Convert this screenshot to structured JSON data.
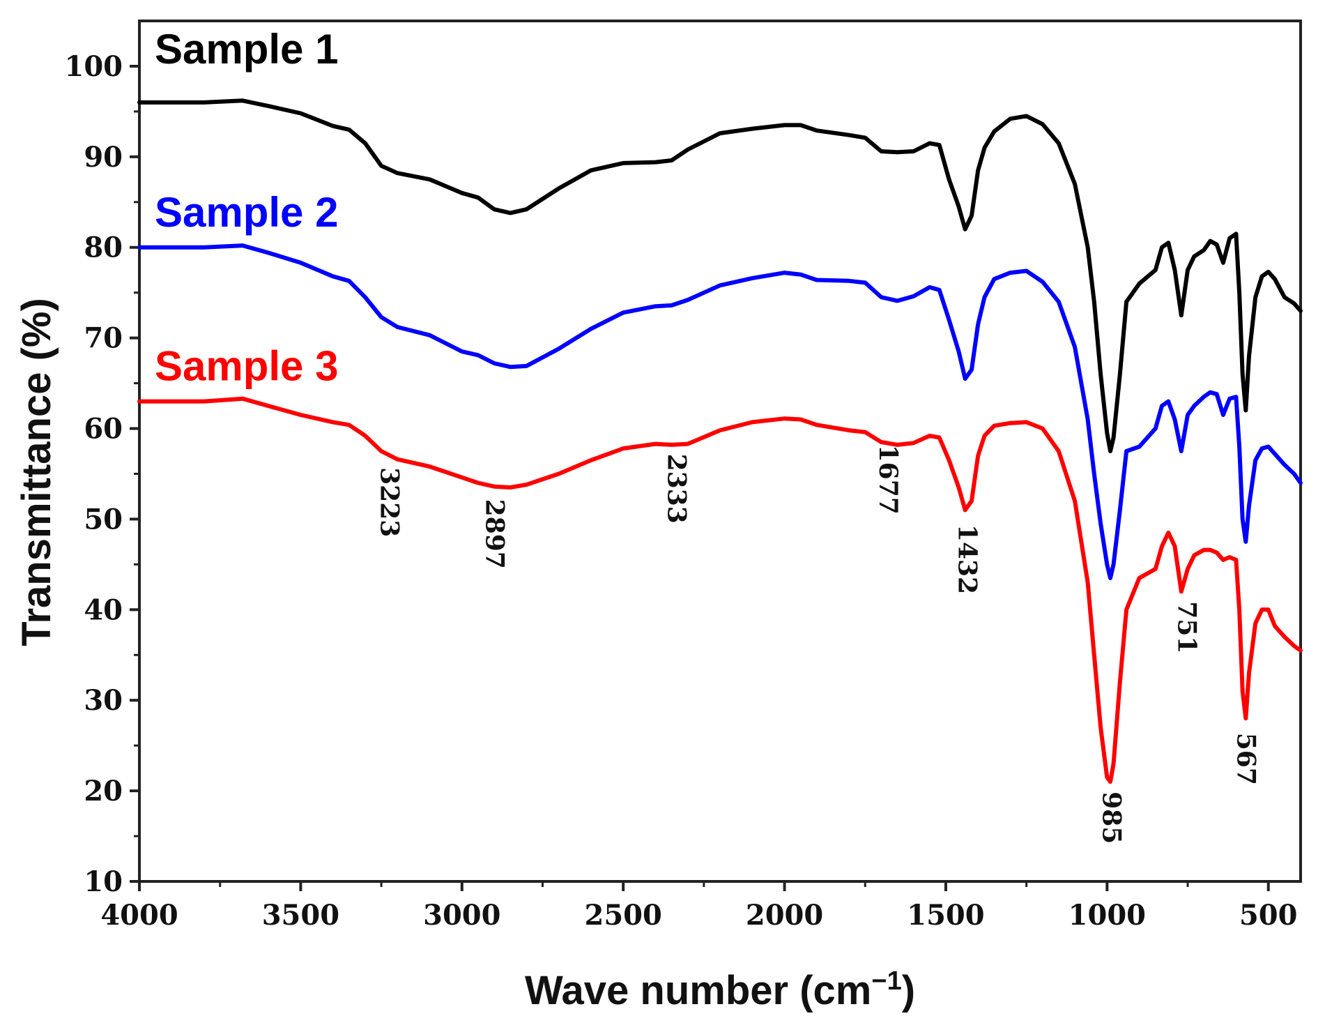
{
  "chart_data": {
    "type": "line",
    "title": "",
    "xlabel": "Wave number (cm",
    "xlabel_superscript": "−1",
    "xlabel_close": ")",
    "ylabel": "Transmittance (%)",
    "xlim": [
      4000,
      400
    ],
    "ylim": [
      10,
      105
    ],
    "x_ticks": [
      4000,
      3500,
      3000,
      2500,
      2000,
      1500,
      1000,
      500
    ],
    "y_ticks": [
      10,
      20,
      30,
      40,
      50,
      60,
      70,
      80,
      90,
      100
    ],
    "grid": false,
    "legend_position": "left-inline",
    "series": [
      {
        "name": "Sample 1",
        "color": "#000000",
        "x": [
          4000,
          3900,
          3800,
          3680,
          3600,
          3500,
          3400,
          3350,
          3300,
          3250,
          3200,
          3100,
          3000,
          2950,
          2900,
          2850,
          2800,
          2700,
          2600,
          2500,
          2400,
          2350,
          2300,
          2200,
          2100,
          2000,
          1950,
          1900,
          1800,
          1750,
          1700,
          1650,
          1600,
          1550,
          1520,
          1490,
          1460,
          1440,
          1420,
          1400,
          1380,
          1350,
          1300,
          1250,
          1200,
          1150,
          1100,
          1060,
          1040,
          1020,
          1000,
          990,
          980,
          960,
          940,
          900,
          850,
          830,
          810,
          790,
          770,
          750,
          730,
          700,
          680,
          660,
          640,
          620,
          600,
          590,
          580,
          570,
          560,
          540,
          520,
          500,
          480,
          450,
          420,
          400
        ],
        "y": [
          96,
          96,
          96,
          96.2,
          95.6,
          94.8,
          93.4,
          93,
          91.5,
          89,
          88.2,
          87.5,
          86,
          85.5,
          84.2,
          83.8,
          84.2,
          86.5,
          88.5,
          89.3,
          89.4,
          89.6,
          90.8,
          92.6,
          93.1,
          93.5,
          93.5,
          92.9,
          92.4,
          92.1,
          90.6,
          90.5,
          90.6,
          91.5,
          91.3,
          87.5,
          84.5,
          82,
          83.5,
          88.5,
          91,
          92.8,
          94.2,
          94.5,
          93.6,
          91.5,
          87,
          80,
          74,
          66,
          59.5,
          57.5,
          59,
          66,
          74,
          76,
          77.5,
          80,
          80.5,
          77.5,
          72.5,
          77.5,
          79,
          79.7,
          80.7,
          80.3,
          78.3,
          81,
          81.5,
          75,
          66,
          62,
          68,
          74.5,
          76.8,
          77.3,
          76.5,
          74.5,
          73.8,
          73
        ]
      },
      {
        "name": "Sample 2",
        "color": "#0000ff",
        "x": [
          4000,
          3900,
          3800,
          3680,
          3600,
          3500,
          3400,
          3350,
          3300,
          3250,
          3200,
          3100,
          3000,
          2950,
          2900,
          2850,
          2800,
          2700,
          2600,
          2500,
          2400,
          2350,
          2300,
          2200,
          2100,
          2000,
          1950,
          1900,
          1800,
          1750,
          1700,
          1650,
          1600,
          1550,
          1520,
          1490,
          1460,
          1440,
          1420,
          1400,
          1380,
          1350,
          1300,
          1250,
          1200,
          1150,
          1100,
          1060,
          1040,
          1020,
          1000,
          990,
          980,
          960,
          940,
          900,
          850,
          830,
          810,
          790,
          770,
          750,
          730,
          700,
          680,
          660,
          640,
          620,
          600,
          590,
          580,
          570,
          560,
          540,
          520,
          500,
          480,
          450,
          420,
          400
        ],
        "y": [
          80,
          80,
          80,
          80.2,
          79.4,
          78.3,
          76.8,
          76.3,
          74.5,
          72.3,
          71.2,
          70.3,
          68.5,
          68.1,
          67.2,
          66.8,
          66.9,
          68.8,
          71,
          72.8,
          73.5,
          73.6,
          74.2,
          75.8,
          76.6,
          77.2,
          77,
          76.4,
          76.3,
          76.1,
          74.5,
          74.1,
          74.6,
          75.6,
          75.3,
          72,
          68.5,
          65.5,
          66.5,
          71.5,
          74.5,
          76.5,
          77.2,
          77.4,
          76.2,
          74,
          69,
          61,
          55,
          49.5,
          45,
          43.5,
          45,
          51,
          57.5,
          58,
          60,
          62.5,
          63,
          61,
          57.5,
          61.5,
          62.5,
          63.5,
          64,
          63.8,
          61.5,
          63.3,
          63.5,
          58,
          50,
          47.5,
          51.5,
          56.5,
          57.8,
          58,
          57.2,
          56,
          55,
          54
        ]
      },
      {
        "name": "Sample 3",
        "color": "#ff0000",
        "x": [
          4000,
          3900,
          3800,
          3680,
          3600,
          3500,
          3400,
          3350,
          3300,
          3250,
          3200,
          3100,
          3000,
          2950,
          2900,
          2850,
          2800,
          2700,
          2600,
          2500,
          2400,
          2350,
          2300,
          2200,
          2100,
          2000,
          1950,
          1900,
          1800,
          1750,
          1700,
          1650,
          1600,
          1550,
          1520,
          1490,
          1460,
          1440,
          1420,
          1400,
          1380,
          1350,
          1300,
          1250,
          1200,
          1150,
          1100,
          1060,
          1040,
          1020,
          1000,
          990,
          980,
          960,
          940,
          900,
          850,
          830,
          810,
          790,
          770,
          750,
          730,
          700,
          680,
          660,
          640,
          620,
          600,
          590,
          580,
          570,
          560,
          540,
          520,
          500,
          480,
          450,
          420,
          400
        ],
        "y": [
          63,
          63,
          63,
          63.3,
          62.5,
          61.5,
          60.7,
          60.4,
          59.2,
          57.5,
          56.6,
          55.8,
          54.6,
          54,
          53.6,
          53.5,
          53.8,
          55,
          56.5,
          57.8,
          58.3,
          58.2,
          58.3,
          59.8,
          60.7,
          61.1,
          61,
          60.4,
          59.8,
          59.6,
          58.5,
          58.2,
          58.4,
          59.2,
          59,
          56.5,
          53.5,
          51,
          52,
          57,
          59.2,
          60.3,
          60.6,
          60.7,
          60,
          57.5,
          52,
          43,
          35,
          27,
          21.5,
          21,
          23,
          32,
          40,
          43.5,
          44.5,
          47,
          48.5,
          47,
          42,
          44.5,
          46,
          46.6,
          46.6,
          46.3,
          45.5,
          45.8,
          45.5,
          40,
          31,
          28,
          33,
          38.5,
          40,
          40,
          38.2,
          37,
          36,
          35.5
        ]
      }
    ],
    "annotations": [
      {
        "label": "3223",
        "x": 3223,
        "y": 56.8
      },
      {
        "label": "2897",
        "x": 2897,
        "y": 53.3
      },
      {
        "label": "2333",
        "x": 2333,
        "y": 58.3
      },
      {
        "label": "1677",
        "x": 1677,
        "y": 59.3
      },
      {
        "label": "1432",
        "x": 1432,
        "y": 50.5
      },
      {
        "label": "985",
        "x": 985,
        "y": 21
      },
      {
        "label": "751",
        "x": 751,
        "y": 42
      },
      {
        "label": "567",
        "x": 567,
        "y": 27.5
      }
    ]
  }
}
